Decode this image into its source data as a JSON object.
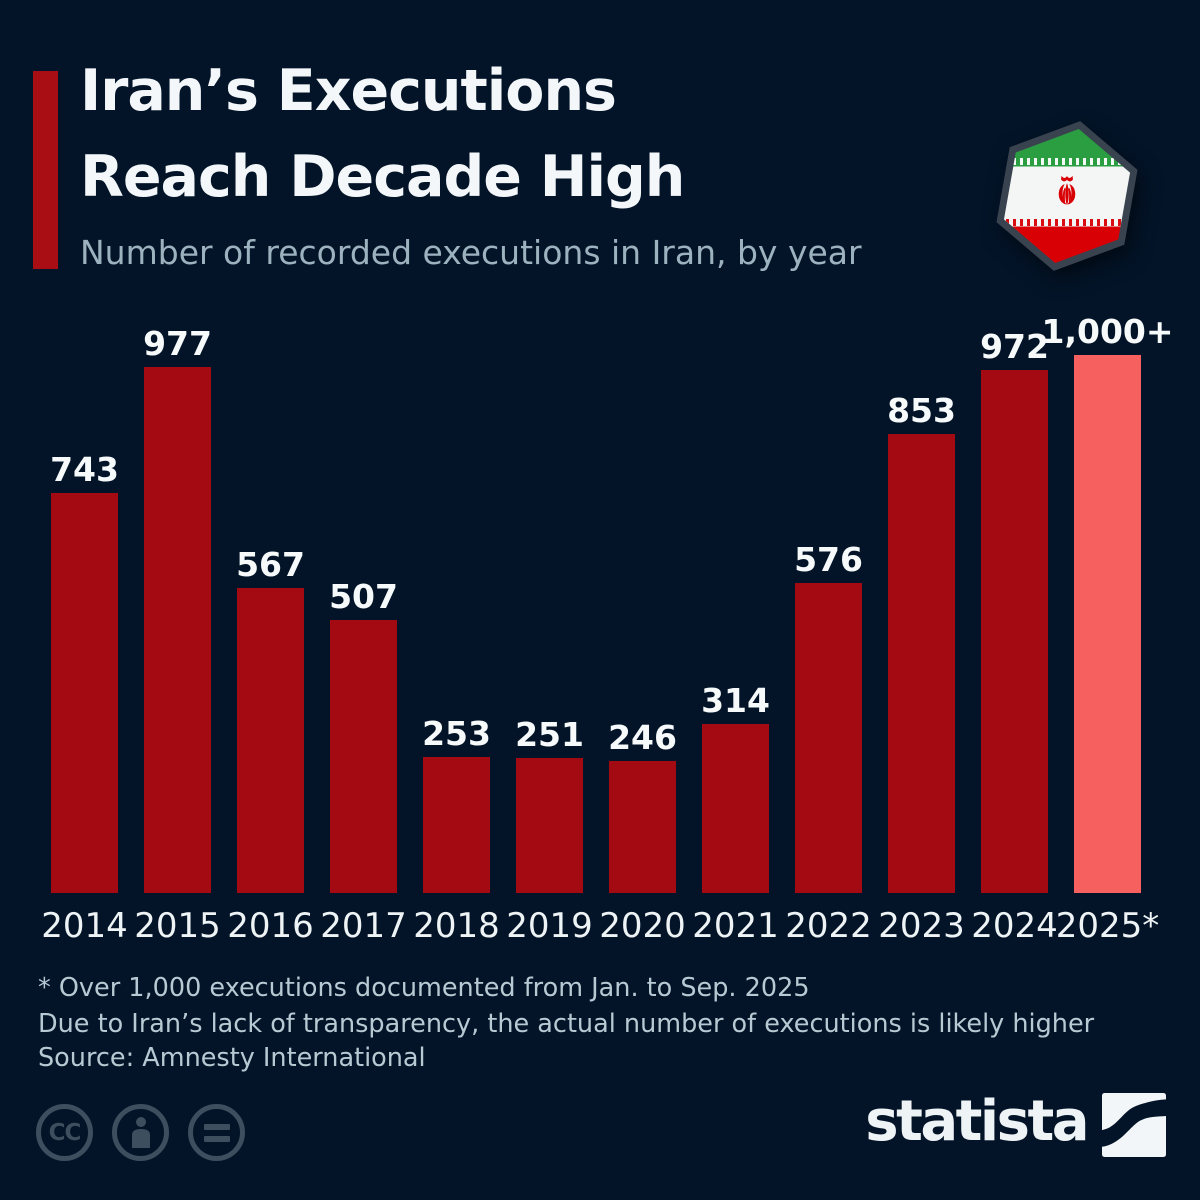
{
  "header": {
    "title_line1": "Iran’s Executions",
    "title_line2": "Reach Decade High",
    "subtitle": "Number of recorded executions in Iran, by year",
    "flag": "iran-flag-hexagon-badge"
  },
  "chart_data": {
    "type": "bar",
    "title": "Iran’s Executions Reach Decade High",
    "xlabel": "Year",
    "ylabel": "Number of recorded executions",
    "ylim": [
      0,
      1100
    ],
    "grid": false,
    "legend": "none",
    "categories": [
      "2014",
      "2015",
      "2016",
      "2017",
      "2018",
      "2019",
      "2020",
      "2021",
      "2022",
      "2023",
      "2024",
      "2025*"
    ],
    "values": [
      743,
      977,
      567,
      507,
      253,
      251,
      246,
      314,
      576,
      853,
      972,
      1000
    ],
    "value_labels": [
      "743",
      "977",
      "567",
      "507",
      "253",
      "251",
      "246",
      "314",
      "576",
      "853",
      "972",
      "1,000+"
    ],
    "bar_color": "#a30a11",
    "highlight_color": "#f6605f",
    "highlight_index": 11
  },
  "footer": {
    "footnote_line1": "* Over 1,000 executions documented from Jan. to Sep. 2025",
    "footnote_line2": "Due to Iran’s lack of transparency, the actual number of executions is likely higher",
    "source": "Source: Amnesty International"
  },
  "branding": {
    "logo_text": "statista",
    "license_cc_label": "CC",
    "license_icons": [
      "cc-icon",
      "attribution-person-icon",
      "equals-icon"
    ]
  },
  "colors": {
    "background": "#031428",
    "accent_red": "#a90e15",
    "bar_red": "#a30a11",
    "bar_light_red": "#f6605f",
    "title_text": "#f3f7f9",
    "subtitle_text": "#9db2bf",
    "footnote_text": "#b7cad3",
    "icon_slate": "#3d4f5e",
    "flag_green": "#2a9e41",
    "flag_red": "#d80005"
  }
}
